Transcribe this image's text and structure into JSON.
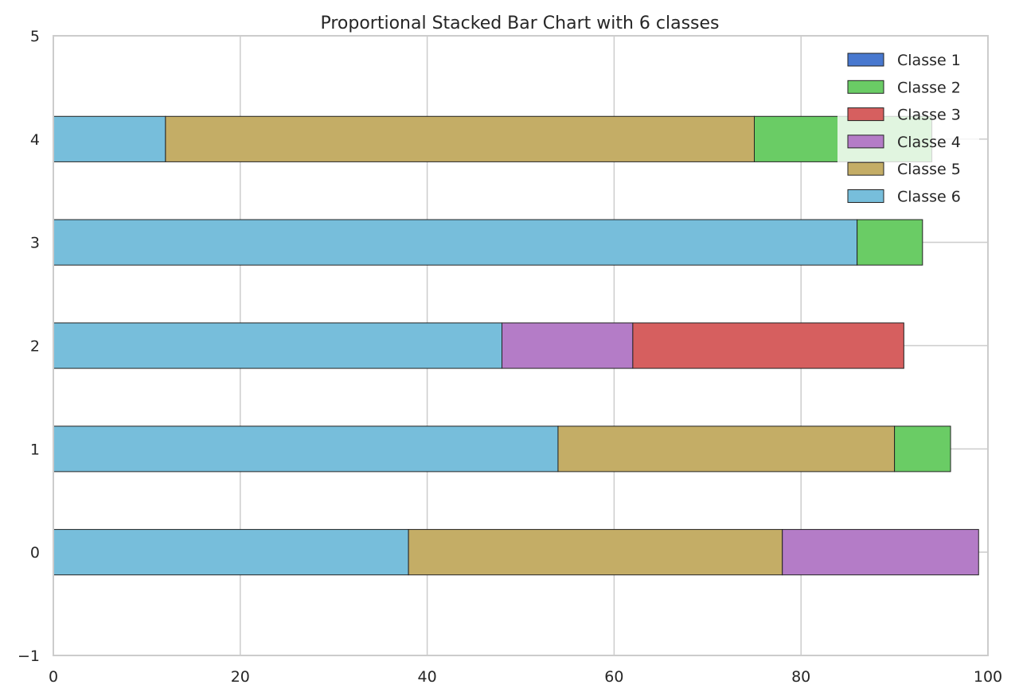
{
  "chart_data": {
    "type": "bar",
    "orientation": "horizontal",
    "stacked": true,
    "title": "Proportional Stacked Bar Chart with 6 classes",
    "xlabel": "",
    "ylabel": "",
    "xlim": [
      0,
      100
    ],
    "ylim": [
      -1,
      5
    ],
    "xticks": [
      "0",
      "20",
      "40",
      "60",
      "80",
      "100"
    ],
    "yticks": [
      "−1",
      "0",
      "1",
      "2",
      "3",
      "4",
      "5"
    ],
    "grid": true,
    "legend_position": "top-right",
    "categories": [
      "0",
      "1",
      "2",
      "3",
      "4"
    ],
    "series": [
      {
        "name": "Classe 6",
        "color": "#77bedb",
        "values": [
          38,
          54,
          48,
          86,
          12
        ]
      },
      {
        "name": "Classe 5",
        "color": "#c4ad66",
        "values": [
          40,
          36,
          0,
          0,
          63
        ]
      },
      {
        "name": "Classe 4",
        "color": "#b47cc7",
        "values": [
          21,
          0,
          14,
          0,
          0
        ]
      },
      {
        "name": "Classe 3",
        "color": "#d65f5f",
        "values": [
          0,
          0,
          29,
          0,
          0
        ]
      },
      {
        "name": "Classe 2",
        "color": "#6acc65",
        "values": [
          0,
          6,
          0,
          7,
          19
        ]
      },
      {
        "name": "Classe 1",
        "color": "#4878cf",
        "values": [
          0,
          0,
          0,
          0,
          0
        ]
      }
    ],
    "legend_order": [
      "Classe 1",
      "Classe 2",
      "Classe 3",
      "Classe 4",
      "Classe 5",
      "Classe 6"
    ]
  }
}
